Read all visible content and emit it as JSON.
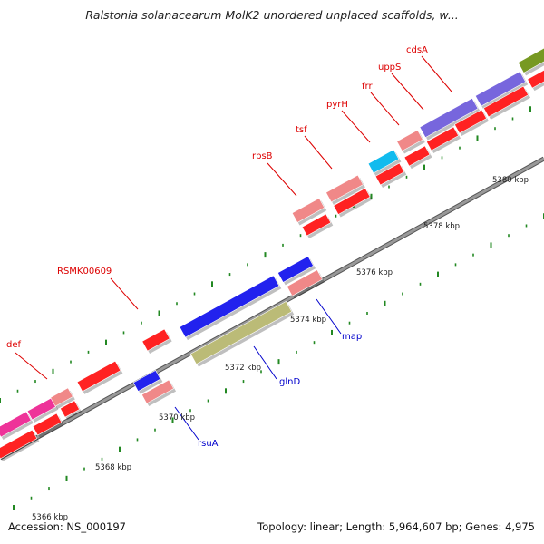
{
  "title": "Ralstonia solanacearum MolK2 unordered unplaced scaffolds, w...",
  "footer": {
    "accession": "Accession: NS_000197",
    "summary": "Topology: linear; Length: 5,964,607 bp; Genes: 4,975"
  },
  "colors": {
    "backbone": "#999999",
    "tick": "#228822",
    "red_gene": "#ff2222",
    "pink_gene": "#f08888",
    "blue_gene": "#2222ee",
    "cyan_gene": "#11bbee",
    "purple_gene": "#7766dd",
    "olive_gene": "#bbbb77",
    "green_gene": "#779922",
    "magenta_gene": "#ee3399",
    "red_label": "#dd0000",
    "blue_label": "#0000cc"
  },
  "scale_labels": [
    "5366 kbp",
    "5368 kbp",
    "5370 kbp",
    "5372 kbp",
    "5374 kbp",
    "5376 kbp",
    "5378 kbp",
    "5380 kbp"
  ],
  "gene_labels": [
    {
      "name": "def",
      "color": "red"
    },
    {
      "name": "RSMK00609",
      "color": "red"
    },
    {
      "name": "rpsB",
      "color": "red"
    },
    {
      "name": "tsf",
      "color": "red"
    },
    {
      "name": "pyrH",
      "color": "red"
    },
    {
      "name": "frr",
      "color": "red"
    },
    {
      "name": "uppS",
      "color": "red"
    },
    {
      "name": "cdsA",
      "color": "red"
    },
    {
      "name": "map",
      "color": "blue"
    },
    {
      "name": "glnD",
      "color": "blue"
    },
    {
      "name": "rsuA",
      "color": "blue"
    }
  ]
}
